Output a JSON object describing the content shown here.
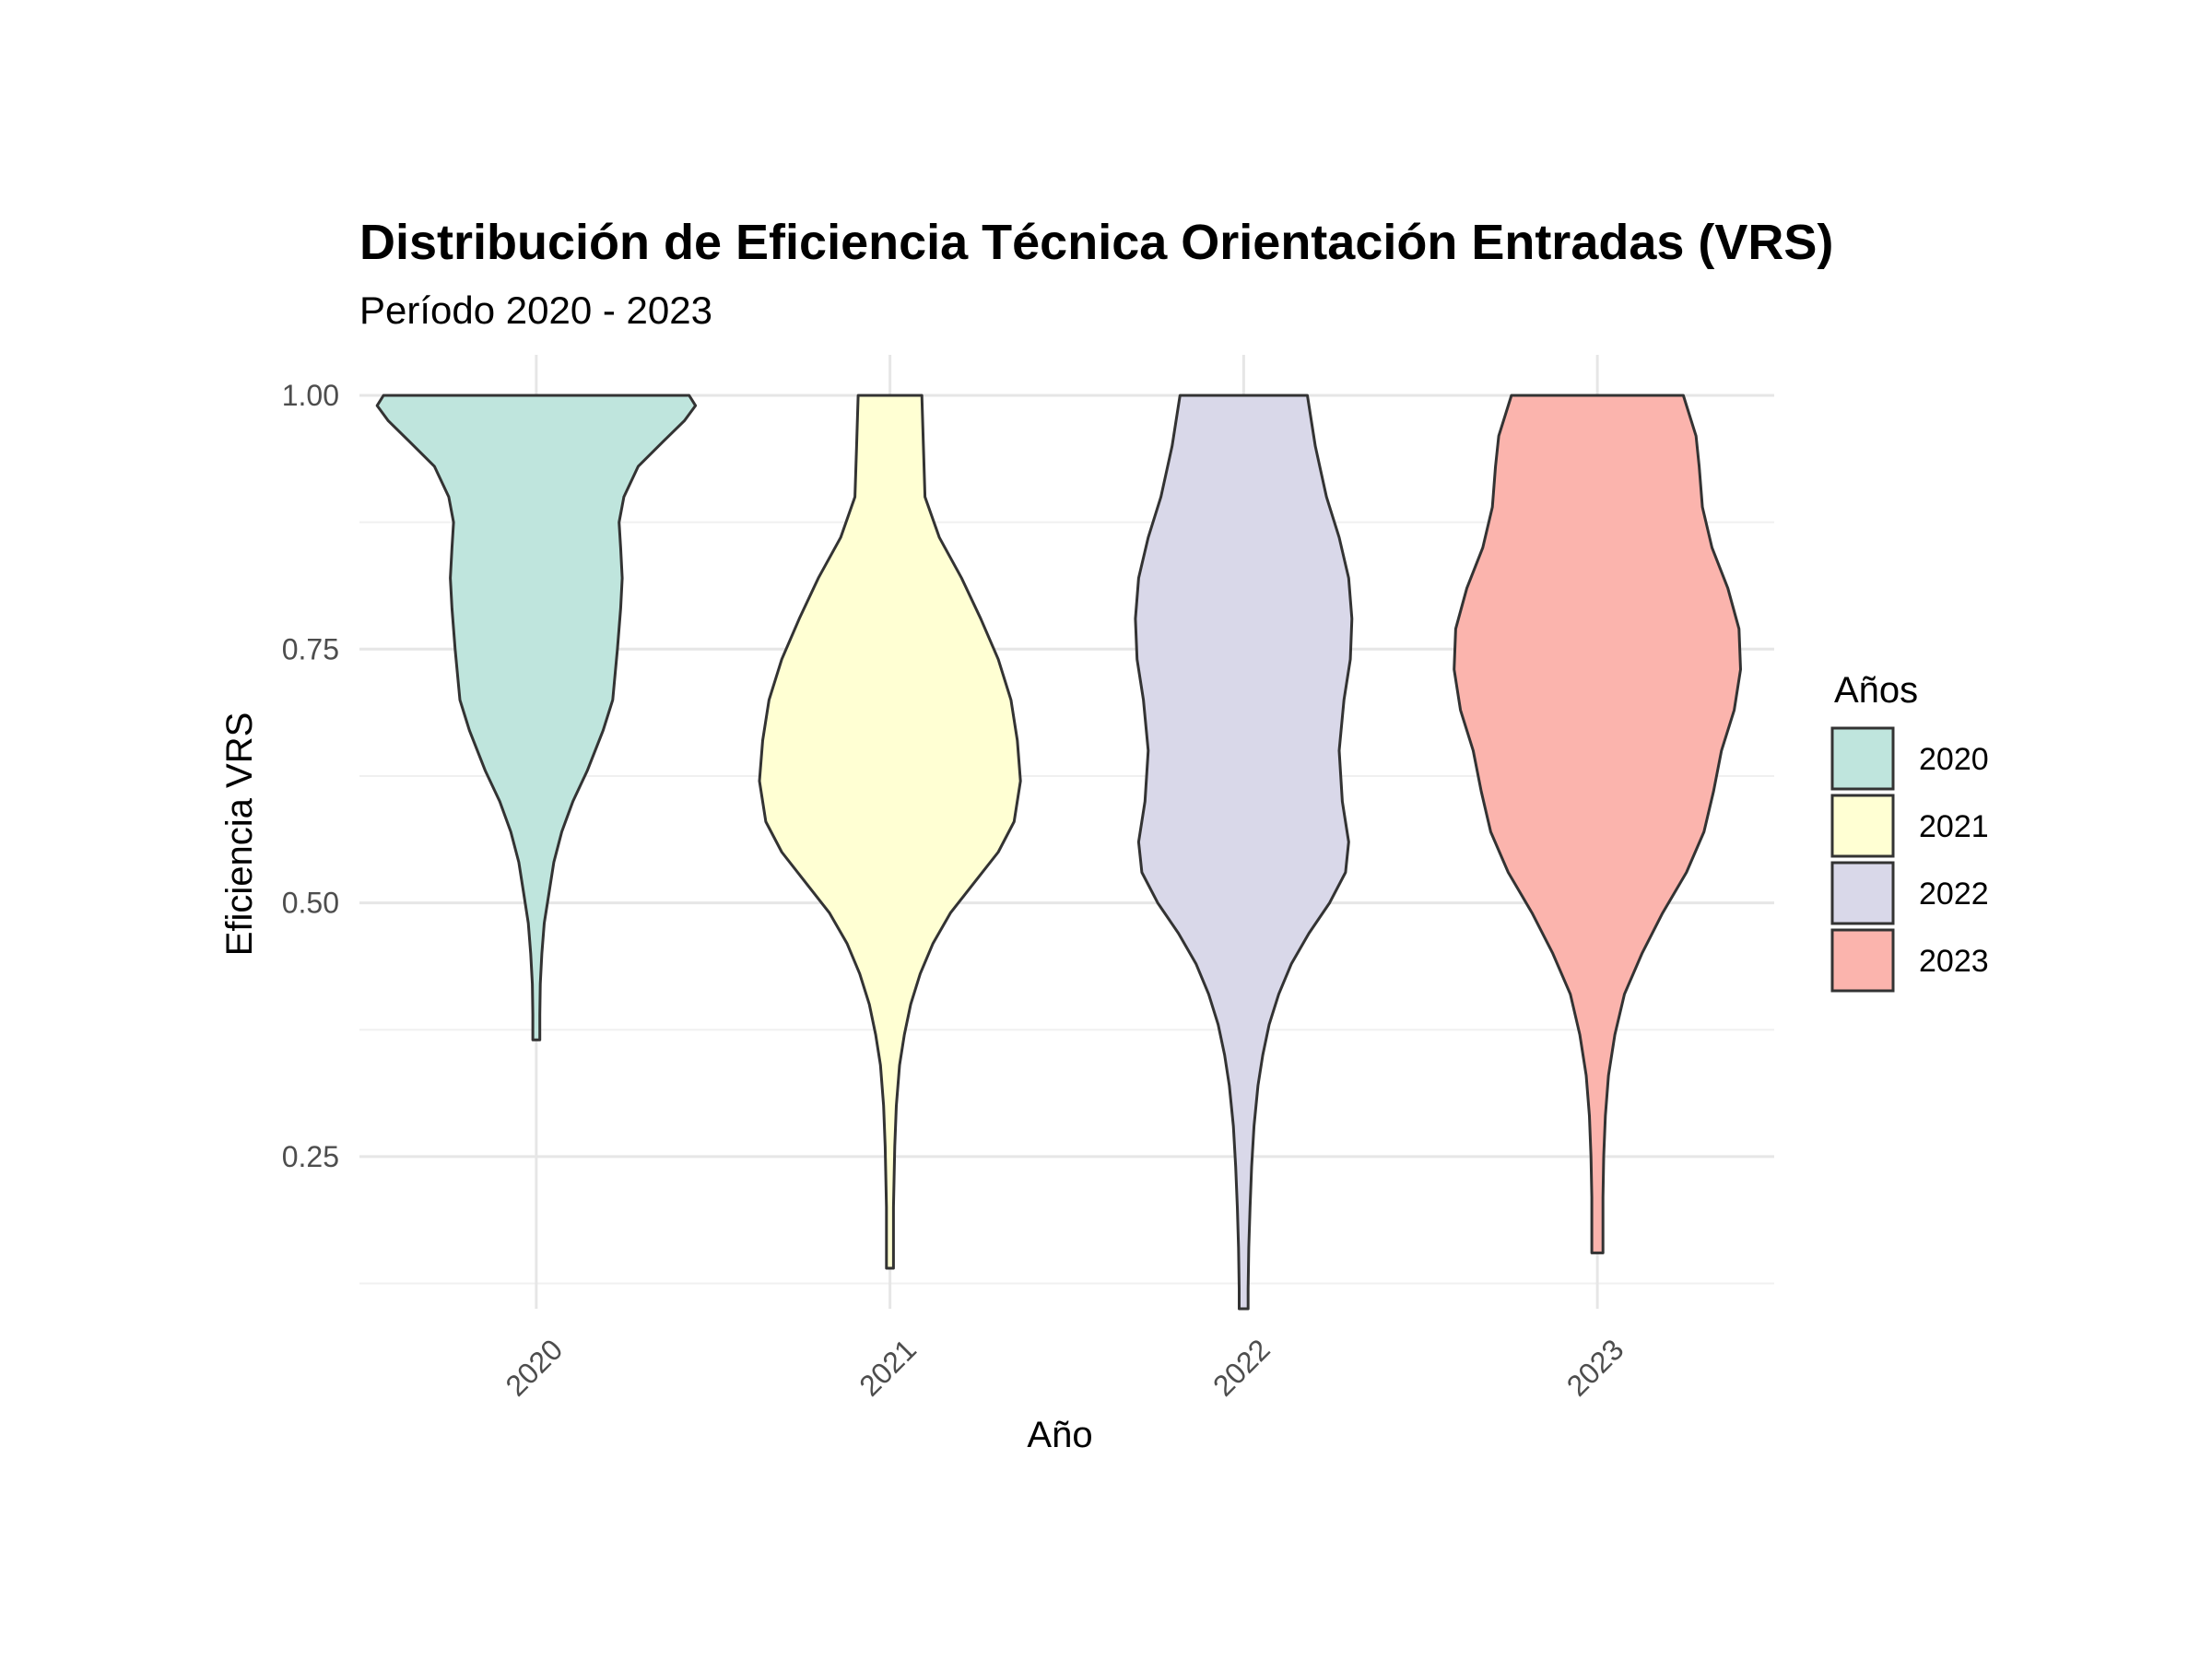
{
  "chart_data": {
    "type": "violin",
    "title": "Distribución de Eficiencia Técnica Orientación Entradas (VRS)",
    "subtitle": "Período 2020 - 2023",
    "xlabel": "Año",
    "ylabel": "Eficiencia VRS",
    "categories": [
      "2020",
      "2021",
      "2022",
      "2023"
    ],
    "ylim": [
      0.1,
      1.04
    ],
    "y_ticks": [
      {
        "value": 0.25,
        "label": "0.25"
      },
      {
        "value": 0.5,
        "label": "0.50"
      },
      {
        "value": 0.75,
        "label": "0.75"
      },
      {
        "value": 1.0,
        "label": "1.00"
      }
    ],
    "grid": true,
    "legend": {
      "title": "Años",
      "position": "right",
      "entries": [
        "2020",
        "2021",
        "2022",
        "2023"
      ]
    },
    "series": [
      {
        "name": "2020",
        "color": "#bfe5dd",
        "min": 0.365,
        "max": 1.0,
        "profile": [
          [
            1.0,
            0.96
          ],
          [
            0.99,
            1.0
          ],
          [
            0.975,
            0.93
          ],
          [
            0.955,
            0.8
          ],
          [
            0.93,
            0.64
          ],
          [
            0.9,
            0.55
          ],
          [
            0.875,
            0.52
          ],
          [
            0.85,
            0.53
          ],
          [
            0.82,
            0.54
          ],
          [
            0.79,
            0.53
          ],
          [
            0.75,
            0.51
          ],
          [
            0.7,
            0.48
          ],
          [
            0.67,
            0.42
          ],
          [
            0.63,
            0.32
          ],
          [
            0.6,
            0.23
          ],
          [
            0.57,
            0.16
          ],
          [
            0.54,
            0.11
          ],
          [
            0.51,
            0.08
          ],
          [
            0.48,
            0.05
          ],
          [
            0.45,
            0.035
          ],
          [
            0.42,
            0.025
          ],
          [
            0.39,
            0.022
          ],
          [
            0.365,
            0.022
          ]
        ]
      },
      {
        "name": "2021",
        "color": "#ffffd3",
        "min": 0.14,
        "max": 1.0,
        "profile": [
          [
            1.0,
            0.2
          ],
          [
            0.95,
            0.21
          ],
          [
            0.9,
            0.22
          ],
          [
            0.86,
            0.31
          ],
          [
            0.82,
            0.45
          ],
          [
            0.78,
            0.57
          ],
          [
            0.74,
            0.68
          ],
          [
            0.7,
            0.76
          ],
          [
            0.66,
            0.8
          ],
          [
            0.62,
            0.82
          ],
          [
            0.58,
            0.78
          ],
          [
            0.55,
            0.68
          ],
          [
            0.52,
            0.53
          ],
          [
            0.49,
            0.38
          ],
          [
            0.46,
            0.27
          ],
          [
            0.43,
            0.19
          ],
          [
            0.4,
            0.13
          ],
          [
            0.37,
            0.09
          ],
          [
            0.34,
            0.06
          ],
          [
            0.3,
            0.04
          ],
          [
            0.26,
            0.03
          ],
          [
            0.2,
            0.022
          ],
          [
            0.14,
            0.022
          ]
        ]
      },
      {
        "name": "2022",
        "color": "#d9d8e9",
        "min": 0.1,
        "max": 1.0,
        "profile": [
          [
            1.0,
            0.4
          ],
          [
            0.95,
            0.45
          ],
          [
            0.9,
            0.52
          ],
          [
            0.86,
            0.6
          ],
          [
            0.82,
            0.66
          ],
          [
            0.78,
            0.68
          ],
          [
            0.74,
            0.67
          ],
          [
            0.7,
            0.63
          ],
          [
            0.65,
            0.6
          ],
          [
            0.6,
            0.62
          ],
          [
            0.56,
            0.66
          ],
          [
            0.53,
            0.64
          ],
          [
            0.5,
            0.54
          ],
          [
            0.47,
            0.41
          ],
          [
            0.44,
            0.3
          ],
          [
            0.41,
            0.22
          ],
          [
            0.38,
            0.16
          ],
          [
            0.35,
            0.12
          ],
          [
            0.32,
            0.09
          ],
          [
            0.28,
            0.065
          ],
          [
            0.24,
            0.05
          ],
          [
            0.2,
            0.04
          ],
          [
            0.16,
            0.032
          ],
          [
            0.12,
            0.028
          ],
          [
            0.1,
            0.028
          ]
        ]
      },
      {
        "name": "2023",
        "color": "#fbb4ad",
        "min": 0.155,
        "max": 1.0,
        "profile": [
          [
            1.0,
            0.54
          ],
          [
            0.96,
            0.62
          ],
          [
            0.93,
            0.64
          ],
          [
            0.89,
            0.66
          ],
          [
            0.85,
            0.72
          ],
          [
            0.81,
            0.82
          ],
          [
            0.77,
            0.89
          ],
          [
            0.73,
            0.9
          ],
          [
            0.69,
            0.86
          ],
          [
            0.65,
            0.78
          ],
          [
            0.61,
            0.73
          ],
          [
            0.57,
            0.67
          ],
          [
            0.53,
            0.56
          ],
          [
            0.49,
            0.41
          ],
          [
            0.45,
            0.28
          ],
          [
            0.41,
            0.17
          ],
          [
            0.37,
            0.11
          ],
          [
            0.33,
            0.07
          ],
          [
            0.29,
            0.05
          ],
          [
            0.25,
            0.04
          ],
          [
            0.21,
            0.035
          ],
          [
            0.155,
            0.035
          ]
        ]
      }
    ]
  }
}
